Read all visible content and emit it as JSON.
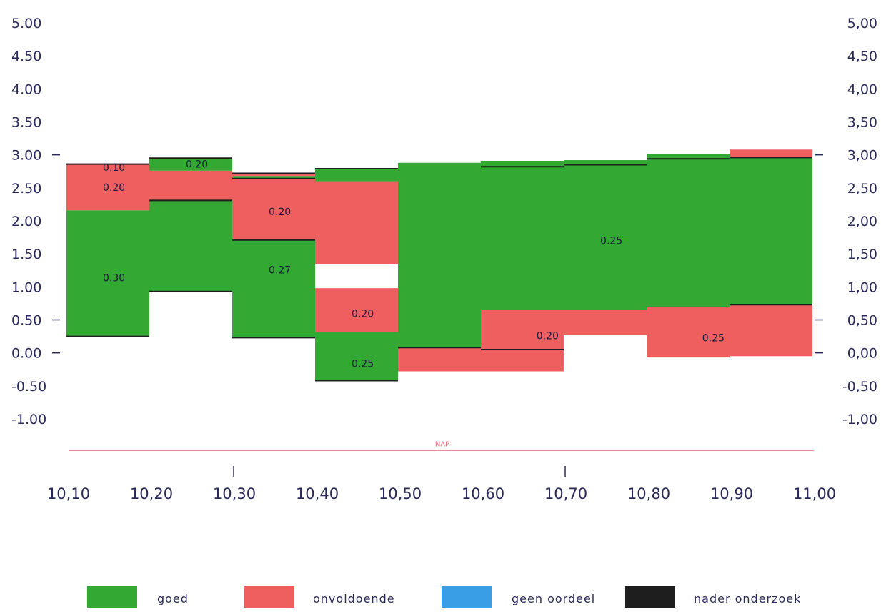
{
  "chart_data": {
    "type": "bar",
    "subtype": "stepped layer profile",
    "title": "",
    "x_tick_labels": [
      "10,10",
      "10,20",
      "10,30",
      "10,40",
      "10,50",
      "10,60",
      "10,70",
      "10,80",
      "10,90",
      "11,00"
    ],
    "left_y_tick_labels": [
      "5.00",
      "4.50",
      "4.00",
      "3.50",
      "3.00",
      "2.50",
      "2.00",
      "1.50",
      "1.00",
      "0.50",
      "0.00",
      "-0.50",
      "-1.00"
    ],
    "right_y_tick_labels": [
      "5,00",
      "4,50",
      "4,00",
      "3,50",
      "3,00",
      "2,50",
      "2,00",
      "1,50",
      "1,00",
      "0,50",
      "0,00",
      "-0,50",
      "-1,00"
    ],
    "xlim": [
      10.1,
      11.0
    ],
    "ylim": [
      -1.0,
      5.0
    ],
    "colors": {
      "goed": "#33a833",
      "onvoldoende": "#ef5f60",
      "geen_oordeel": "#3a9ee6",
      "nader_onderzoek": "#1e1e1e",
      "reference_line": "#e88a95"
    },
    "segments": [
      {
        "x0": 10.1,
        "x1": 10.2,
        "bottom": 0.25,
        "top": 2.16,
        "class": "goed"
      },
      {
        "x0": 10.1,
        "x1": 10.2,
        "bottom": 2.16,
        "top": 2.86,
        "class": "onvoldoende"
      },
      {
        "x0": 10.2,
        "x1": 10.3,
        "bottom": 0.93,
        "top": 2.31,
        "class": "goed"
      },
      {
        "x0": 10.2,
        "x1": 10.3,
        "bottom": 2.31,
        "top": 2.76,
        "class": "onvoldoende"
      },
      {
        "x0": 10.2,
        "x1": 10.3,
        "bottom": 2.76,
        "top": 2.95,
        "class": "goed"
      },
      {
        "x0": 10.3,
        "x1": 10.4,
        "bottom": 0.23,
        "top": 1.71,
        "class": "goed"
      },
      {
        "x0": 10.3,
        "x1": 10.4,
        "bottom": 1.71,
        "top": 2.64,
        "class": "onvoldoende"
      },
      {
        "x0": 10.3,
        "x1": 10.4,
        "bottom": 2.64,
        "top": 2.68,
        "class": "goed"
      },
      {
        "x0": 10.3,
        "x1": 10.4,
        "bottom": 2.68,
        "top": 2.72,
        "class": "onvoldoende"
      },
      {
        "x0": 10.4,
        "x1": 10.5,
        "bottom": -0.42,
        "top": 0.32,
        "class": "goed"
      },
      {
        "x0": 10.4,
        "x1": 10.5,
        "bottom": 0.32,
        "top": 0.98,
        "class": "onvoldoende"
      },
      {
        "x0": 10.4,
        "x1": 10.5,
        "bottom": 1.35,
        "top": 2.6,
        "class": "onvoldoende"
      },
      {
        "x0": 10.4,
        "x1": 10.5,
        "bottom": 2.6,
        "top": 2.79,
        "class": "goed"
      },
      {
        "x0": 10.5,
        "x1": 10.6,
        "bottom": -0.28,
        "top": 0.08,
        "class": "onvoldoende"
      },
      {
        "x0": 10.5,
        "x1": 10.6,
        "bottom": 0.08,
        "top": 2.88,
        "class": "goed"
      },
      {
        "x0": 10.6,
        "x1": 10.7,
        "bottom": -0.28,
        "top": 0.05,
        "class": "onvoldoende"
      },
      {
        "x0": 10.6,
        "x1": 10.7,
        "bottom": 0.05,
        "top": 0.65,
        "class": "onvoldoende"
      },
      {
        "x0": 10.6,
        "x1": 10.7,
        "bottom": 0.65,
        "top": 2.91,
        "class": "goed"
      },
      {
        "x0": 10.7,
        "x1": 10.8,
        "bottom": 0.27,
        "top": 0.65,
        "class": "onvoldoende"
      },
      {
        "x0": 10.7,
        "x1": 10.8,
        "bottom": 0.65,
        "top": 2.92,
        "class": "goed"
      },
      {
        "x0": 10.8,
        "x1": 10.9,
        "bottom": -0.07,
        "top": 0.7,
        "class": "onvoldoende"
      },
      {
        "x0": 10.8,
        "x1": 10.9,
        "bottom": 0.7,
        "top": 3.01,
        "class": "goed"
      },
      {
        "x0": 10.9,
        "x1": 11.0,
        "bottom": -0.05,
        "top": 0.73,
        "class": "onvoldoende"
      },
      {
        "x0": 10.9,
        "x1": 11.0,
        "bottom": 0.73,
        "top": 2.96,
        "class": "goed"
      },
      {
        "x0": 10.9,
        "x1": 11.0,
        "bottom": 2.96,
        "top": 3.08,
        "class": "onvoldoende"
      }
    ],
    "boundaries": [
      {
        "x0": 10.1,
        "x1": 10.2,
        "y": 2.86
      },
      {
        "x0": 10.1,
        "x1": 10.2,
        "y": 0.25
      },
      {
        "x0": 10.2,
        "x1": 10.3,
        "y": 2.95
      },
      {
        "x0": 10.2,
        "x1": 10.3,
        "y": 2.31
      },
      {
        "x0": 10.2,
        "x1": 10.3,
        "y": 0.93
      },
      {
        "x0": 10.3,
        "x1": 10.4,
        "y": 2.72
      },
      {
        "x0": 10.3,
        "x1": 10.4,
        "y": 2.64
      },
      {
        "x0": 10.3,
        "x1": 10.4,
        "y": 1.71
      },
      {
        "x0": 10.3,
        "x1": 10.4,
        "y": 0.23
      },
      {
        "x0": 10.4,
        "x1": 10.5,
        "y": 2.79
      },
      {
        "x0": 10.4,
        "x1": 10.5,
        "y": -0.42
      },
      {
        "x0": 10.5,
        "x1": 10.6,
        "y": 0.08
      },
      {
        "x0": 10.6,
        "x1": 10.7,
        "y": 2.82
      },
      {
        "x0": 10.6,
        "x1": 10.7,
        "y": 0.05
      },
      {
        "x0": 10.7,
        "x1": 10.8,
        "y": 2.85
      },
      {
        "x0": 10.8,
        "x1": 10.9,
        "y": 2.94
      },
      {
        "x0": 10.9,
        "x1": 11.0,
        "y": 2.96
      },
      {
        "x0": 10.9,
        "x1": 11.0,
        "y": 0.73
      }
    ],
    "segment_labels": [
      {
        "x": 10.144,
        "y": 2.81,
        "text": "0.10"
      },
      {
        "x": 10.144,
        "y": 2.51,
        "text": "0.20"
      },
      {
        "x": 10.144,
        "y": 1.14,
        "text": "0.30"
      },
      {
        "x": 10.244,
        "y": 2.86,
        "text": "0.20"
      },
      {
        "x": 10.344,
        "y": 2.14,
        "text": "0.20"
      },
      {
        "x": 10.344,
        "y": 1.26,
        "text": "0.27"
      },
      {
        "x": 10.444,
        "y": 0.6,
        "text": "0.20"
      },
      {
        "x": 10.444,
        "y": -0.16,
        "text": "0.25"
      },
      {
        "x": 10.667,
        "y": 0.26,
        "text": "0.20"
      },
      {
        "x": 10.744,
        "y": 1.7,
        "text": "0.25"
      },
      {
        "x": 10.867,
        "y": 0.23,
        "text": "0.25"
      }
    ],
    "reference_line": {
      "y": -1.48,
      "label": "NAP"
    },
    "legend": [
      {
        "key": "goed",
        "label": "goed"
      },
      {
        "key": "onvoldoende",
        "label": "onvoldoende"
      },
      {
        "key": "geen_oordeel",
        "label": "geen oordeel"
      },
      {
        "key": "nader_onderzoek",
        "label": "nader onderzoek"
      }
    ],
    "legend_position": "bottom"
  }
}
